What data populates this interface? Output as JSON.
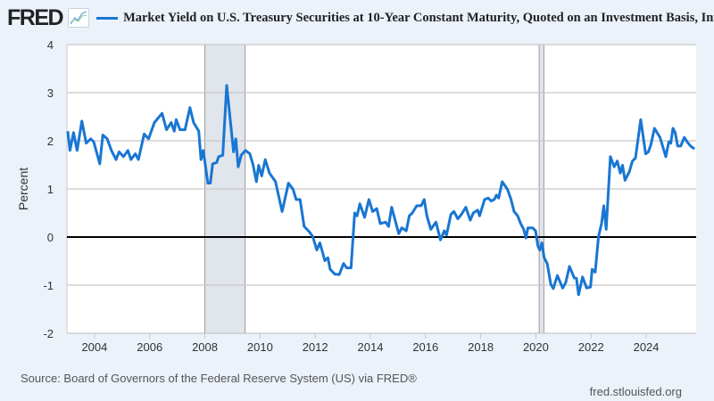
{
  "header": {
    "logo": "FRED",
    "title": "Market Yield on U.S. Treasury Securities at 10-Year Constant Maturity, Quoted on an Investment Basis, Infl"
  },
  "footer": {
    "source": "Source: Board of Governors of the Federal Reserve System (US) via FRED®",
    "site": "fred.stlouisfed.org"
  },
  "colors": {
    "series": "#1976d2",
    "recession": "#e1e5ec",
    "background": "#ebf2fa"
  },
  "chart_data": {
    "type": "line",
    "title": "Market Yield on U.S. Treasury Securities at 10-Year Constant Maturity, Quoted on an Investment Basis, Infl",
    "xlabel": "",
    "ylabel": "Percent",
    "xlim": [
      2003.0,
      2025.81
    ],
    "ylim": [
      -2,
      4
    ],
    "grid": true,
    "legend": "top",
    "x_ticks": [
      "2004",
      "2006",
      "2008",
      "2010",
      "2012",
      "2014",
      "2016",
      "2018",
      "2020",
      "2022",
      "2024"
    ],
    "y_ticks": [
      "4",
      "3",
      "2",
      "1",
      "0",
      "-1",
      "-2"
    ],
    "recessions": [
      [
        2008.0,
        2009.46
      ],
      [
        2020.12,
        2020.29
      ]
    ],
    "series": [
      {
        "x": [
          2003.03,
          2003.11,
          2003.24,
          2003.37,
          2003.54,
          2003.7,
          2003.86,
          2003.97,
          2004.19,
          2004.3,
          2004.46,
          2004.61,
          2004.78,
          2004.89,
          2005.05,
          2005.21,
          2005.32,
          2005.48,
          2005.59,
          2005.8,
          2005.96,
          2006.17,
          2006.45,
          2006.61,
          2006.78,
          2006.89,
          2006.96,
          2007.1,
          2007.28,
          2007.46,
          2007.59,
          2007.78,
          2007.86,
          2007.94,
          2008.11,
          2008.2,
          2008.28,
          2008.43,
          2008.5,
          2008.65,
          2008.79,
          2009.04,
          2009.12,
          2009.21,
          2009.32,
          2009.47,
          2009.63,
          2009.74,
          2009.87,
          2009.95,
          2010.06,
          2010.19,
          2010.34,
          2010.56,
          2010.8,
          2011.03,
          2011.2,
          2011.31,
          2011.45,
          2011.6,
          2011.8,
          2011.91,
          2012.06,
          2012.17,
          2012.35,
          2012.46,
          2012.54,
          2012.71,
          2012.87,
          2013.03,
          2013.14,
          2013.3,
          2013.43,
          2013.52,
          2013.62,
          2013.79,
          2013.95,
          2014.08,
          2014.23,
          2014.36,
          2014.55,
          2014.66,
          2014.77,
          2015.03,
          2015.14,
          2015.3,
          2015.41,
          2015.52,
          2015.68,
          2015.84,
          2015.95,
          2016.05,
          2016.19,
          2016.38,
          2016.54,
          2016.68,
          2016.76,
          2016.92,
          2017.03,
          2017.17,
          2017.3,
          2017.46,
          2017.62,
          2017.73,
          2017.89,
          2017.96,
          2018.14,
          2018.27,
          2018.38,
          2018.49,
          2018.57,
          2018.65,
          2018.78,
          2018.97,
          2019.1,
          2019.21,
          2019.34,
          2019.45,
          2019.56,
          2019.64,
          2019.71,
          2019.88,
          2019.99,
          2020.07,
          2020.14,
          2020.22,
          2020.3,
          2020.41,
          2020.54,
          2020.63,
          2020.78,
          2020.97,
          2021.08,
          2021.22,
          2021.39,
          2021.47,
          2021.55,
          2021.69,
          2021.84,
          2021.98,
          2022.04,
          2022.15,
          2022.27,
          2022.38,
          2022.46,
          2022.55,
          2022.7,
          2022.84,
          2022.95,
          2023.06,
          2023.14,
          2023.23,
          2023.39,
          2023.5,
          2023.61,
          2023.8,
          2023.98,
          2024.08,
          2024.17,
          2024.3,
          2024.5,
          2024.71,
          2024.82,
          2024.89,
          2024.97,
          2025.05,
          2025.14,
          2025.25,
          2025.38,
          2025.48,
          2025.61,
          2025.75
        ],
        "y": [
          2.2,
          1.8,
          2.17,
          1.8,
          2.41,
          1.95,
          2.04,
          1.98,
          1.52,
          2.12,
          2.04,
          1.8,
          1.61,
          1.77,
          1.67,
          1.8,
          1.61,
          1.73,
          1.61,
          2.14,
          2.04,
          2.38,
          2.57,
          2.23,
          2.38,
          2.2,
          2.44,
          2.23,
          2.23,
          2.69,
          2.38,
          2.2,
          1.61,
          1.8,
          1.12,
          1.12,
          1.52,
          1.55,
          1.67,
          1.7,
          3.15,
          1.77,
          2.04,
          1.46,
          1.7,
          1.8,
          1.73,
          1.52,
          1.15,
          1.49,
          1.27,
          1.61,
          1.33,
          1.15,
          0.53,
          1.12,
          0.99,
          0.78,
          0.78,
          0.22,
          0.1,
          0.01,
          -0.27,
          -0.12,
          -0.49,
          -0.43,
          -0.67,
          -0.77,
          -0.78,
          -0.55,
          -0.64,
          -0.64,
          0.5,
          0.44,
          0.69,
          0.41,
          0.78,
          0.53,
          0.59,
          0.28,
          0.31,
          0.22,
          0.62,
          0.07,
          0.19,
          0.13,
          0.44,
          0.5,
          0.65,
          0.65,
          0.78,
          0.44,
          0.16,
          0.31,
          -0.06,
          0.13,
          0.04,
          0.47,
          0.53,
          0.38,
          0.47,
          0.62,
          0.35,
          0.5,
          0.56,
          0.44,
          0.78,
          0.81,
          0.75,
          0.78,
          0.87,
          0.81,
          1.15,
          0.99,
          0.78,
          0.53,
          0.44,
          0.28,
          0.16,
          -0.02,
          0.19,
          0.19,
          0.13,
          -0.18,
          -0.27,
          -0.12,
          -0.43,
          -0.55,
          -0.98,
          -1.07,
          -0.8,
          -1.06,
          -0.95,
          -0.61,
          -0.85,
          -0.86,
          -1.2,
          -0.83,
          -1.06,
          -1.04,
          -0.67,
          -0.73,
          0.01,
          0.28,
          0.65,
          0.16,
          1.67,
          1.46,
          1.58,
          1.33,
          1.49,
          1.18,
          1.36,
          1.58,
          1.64,
          2.44,
          1.73,
          1.77,
          1.92,
          2.26,
          2.07,
          1.67,
          1.98,
          1.95,
          2.26,
          2.17,
          1.89,
          1.89,
          2.07,
          1.98,
          1.89,
          1.83
        ]
      }
    ]
  }
}
